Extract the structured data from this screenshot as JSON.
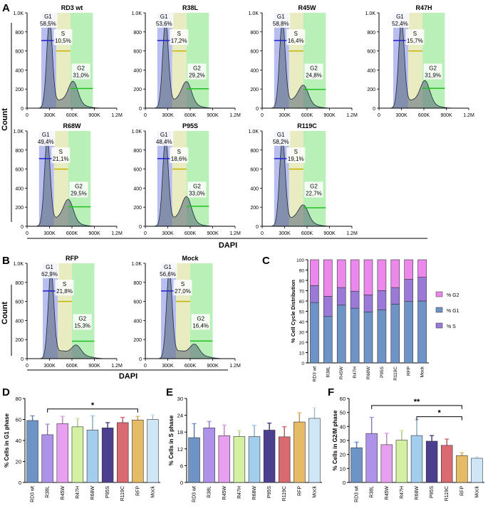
{
  "panel_labels": {
    "A": "A",
    "B": "B",
    "C": "C",
    "D": "D",
    "E": "E",
    "F": "F"
  },
  "histogram_axis": {
    "y_ticks": [
      "0",
      "200",
      "400",
      "600",
      "800",
      "1.0K"
    ],
    "x_ticks": [
      "0",
      "300K",
      "600K",
      "900K",
      "1.2M"
    ],
    "x_label": "DAPI",
    "y_label": "Count"
  },
  "histogram_colors": {
    "g1_band": "#b8bef0",
    "s_band": "#e8ecc0",
    "g2_band": "#b8f0b8",
    "g1_gate": "#2020d0",
    "s_gate": "#c8b400",
    "g2_gate": "#20c020",
    "peak_fill": "#5a6878"
  },
  "chart_data": [
    {
      "type": "area",
      "panel": "A",
      "title": "RD3 wt",
      "xlabel": "DAPI",
      "ylabel": "Count",
      "xlim": [
        0,
        1200000
      ],
      "ylim": [
        0,
        1000
      ],
      "g1_peak": 300000,
      "gates": [
        {
          "label": "G1",
          "percent": "58,5%"
        },
        {
          "label": "S",
          "percent": "10,5%"
        },
        {
          "label": "G2",
          "percent": "31,0%"
        }
      ]
    },
    {
      "type": "area",
      "panel": "A",
      "title": "R38L",
      "xlim": [
        0,
        1200000
      ],
      "ylim": [
        0,
        1000
      ],
      "g1_peak": 270000,
      "gates": [
        {
          "label": "G1",
          "percent": "53,6%"
        },
        {
          "label": "S",
          "percent": "17,2%"
        },
        {
          "label": "G2",
          "percent": "29,2%"
        }
      ]
    },
    {
      "type": "area",
      "panel": "A",
      "title": "R45W",
      "xlim": [
        0,
        1200000
      ],
      "ylim": [
        0,
        1000
      ],
      "g1_peak": 270000,
      "gates": [
        {
          "label": "G1",
          "percent": "58,8%"
        },
        {
          "label": "S",
          "percent": "16,4%"
        },
        {
          "label": "G2",
          "percent": "24,8%"
        }
      ]
    },
    {
      "type": "area",
      "panel": "A",
      "title": "R47H",
      "xlim": [
        0,
        1200000
      ],
      "ylim": [
        0,
        1000
      ],
      "g1_peak": 300000,
      "gates": [
        {
          "label": "G1",
          "percent": "52,4%"
        },
        {
          "label": "S",
          "percent": "15,7%"
        },
        {
          "label": "G2",
          "percent": "31,9%"
        }
      ]
    },
    {
      "type": "area",
      "panel": "A",
      "title": "R68W",
      "xlim": [
        0,
        1200000
      ],
      "ylim": [
        0,
        1000
      ],
      "g1_peak": 270000,
      "gates": [
        {
          "label": "G1",
          "percent": "49,4%"
        },
        {
          "label": "S",
          "percent": "21,1%"
        },
        {
          "label": "G2",
          "percent": "29,5%"
        }
      ]
    },
    {
      "type": "area",
      "panel": "A",
      "title": "P95S",
      "xlim": [
        0,
        1200000
      ],
      "ylim": [
        0,
        1000
      ],
      "g1_peak": 270000,
      "gates": [
        {
          "label": "G1",
          "percent": "48,4%"
        },
        {
          "label": "S",
          "percent": "18,6%"
        },
        {
          "label": "G2",
          "percent": "33,0%"
        }
      ]
    },
    {
      "type": "area",
      "panel": "A",
      "title": "R119C",
      "xlim": [
        0,
        1200000
      ],
      "ylim": [
        0,
        1000
      ],
      "g1_peak": 270000,
      "gates": [
        {
          "label": "G1",
          "percent": "58,2%"
        },
        {
          "label": "S",
          "percent": "19,1%"
        },
        {
          "label": "G2",
          "percent": "22,7%"
        }
      ]
    },
    {
      "type": "area",
      "panel": "B",
      "title": "RFP",
      "xlabel": "DAPI",
      "ylabel": "Count",
      "xlim": [
        0,
        1200000
      ],
      "ylim": [
        0,
        1000
      ],
      "g1_peak": 320000,
      "gates": [
        {
          "label": "G1",
          "percent": "62,9%"
        },
        {
          "label": "S",
          "percent": "21,8%"
        },
        {
          "label": "G2",
          "percent": "15,3%"
        }
      ]
    },
    {
      "type": "area",
      "panel": "B",
      "title": "Mock",
      "xlim": [
        0,
        1200000
      ],
      "ylim": [
        0,
        1000
      ],
      "g1_peak": 320000,
      "gates": [
        {
          "label": "G1",
          "percent": "56,6%"
        },
        {
          "label": "S",
          "percent": "27,0%"
        },
        {
          "label": "G2",
          "percent": "16,4%"
        }
      ]
    },
    {
      "type": "bar",
      "stacked": true,
      "panel": "C",
      "ylabel": "% Cell Cycle Distribution",
      "ylim": [
        0,
        100
      ],
      "y_ticks": [
        "0",
        "10",
        "20",
        "30",
        "40",
        "50",
        "60",
        "70",
        "80",
        "90",
        "100"
      ],
      "categories": [
        "RD3 wt",
        "R38L",
        "R45W",
        "R47H",
        "R68W",
        "P95S",
        "R119C",
        "RFP",
        "Mock"
      ],
      "series": [
        {
          "name": "% G1",
          "color": "#6e93c6",
          "values": [
            58.5,
            45,
            56,
            53,
            49.4,
            51.5,
            57,
            59.5,
            60
          ]
        },
        {
          "name": "% S",
          "color": "#9a79d8",
          "values": [
            16.5,
            19.5,
            17,
            16.5,
            16.6,
            18.5,
            16,
            21.5,
            23
          ]
        },
        {
          "name": "% G2",
          "color": "#ec88ec",
          "values": [
            25,
            35.5,
            27,
            30.5,
            34,
            30,
            27,
            19,
            17
          ]
        }
      ],
      "legend": [
        "% G2",
        "% G1",
        "% S"
      ]
    },
    {
      "type": "bar",
      "panel": "D",
      "ylabel": "% Cells in G1 phase",
      "ylim": [
        0,
        80
      ],
      "y_ticks": [
        "0",
        "20",
        "40",
        "60",
        "80"
      ],
      "categories": [
        "RD3 wt",
        "R38L",
        "R45W",
        "R47H",
        "R68W",
        "P95S",
        "R119C",
        "RFP",
        "Mock"
      ],
      "values": [
        59,
        45.5,
        56,
        53,
        50,
        52,
        57,
        59.5,
        60
      ],
      "errors": [
        4.5,
        10,
        7,
        8,
        13.5,
        5,
        5,
        3.5,
        4.5
      ],
      "significance": {
        "from": "R38L",
        "to": "RFP",
        "label": "*"
      }
    },
    {
      "type": "bar",
      "panel": "E",
      "ylabel": "% Cells in S phase",
      "ylim": [
        0,
        30
      ],
      "y_ticks": [
        "0",
        "6",
        "12",
        "18",
        "24",
        "30"
      ],
      "categories": [
        "RD3 wt",
        "R38L",
        "R45W",
        "R47H",
        "R68W",
        "P95S",
        "R119C",
        "RFP",
        "Mock"
      ],
      "values": [
        16,
        19.5,
        16.7,
        16.4,
        16.4,
        18.7,
        16.3,
        21.6,
        22.9
      ],
      "errors": [
        5,
        2.3,
        3.8,
        2.2,
        4,
        2.5,
        3.6,
        3.3,
        3.8
      ]
    },
    {
      "type": "bar",
      "panel": "F",
      "ylabel": "% Cells in G2/M phase",
      "ylim": [
        0,
        60
      ],
      "y_ticks": [
        "0",
        "10",
        "20",
        "30",
        "40",
        "50",
        "60"
      ],
      "categories": [
        "RD3 wt",
        "R38L",
        "R45W",
        "R47H",
        "R68W",
        "P95S",
        "R119C",
        "RFP",
        "Mock"
      ],
      "values": [
        24.8,
        35,
        27,
        30.2,
        33.5,
        29.5,
        26.5,
        19.2,
        17.3
      ],
      "errors": [
        4,
        11.5,
        8.2,
        7,
        11.5,
        4,
        4.5,
        2,
        1
      ],
      "significance": [
        {
          "from": "R38L",
          "to": "RFP",
          "label": "**"
        },
        {
          "from": "R68W",
          "to": "RFP",
          "label": "*"
        }
      ]
    }
  ],
  "bar_colors": [
    "#6e93c6",
    "#ae91e8",
    "#e7a0f0",
    "#d3f0a3",
    "#a3cdec",
    "#4c3f8f",
    "#d96a72",
    "#e6bb66",
    "#cfe6f7"
  ]
}
